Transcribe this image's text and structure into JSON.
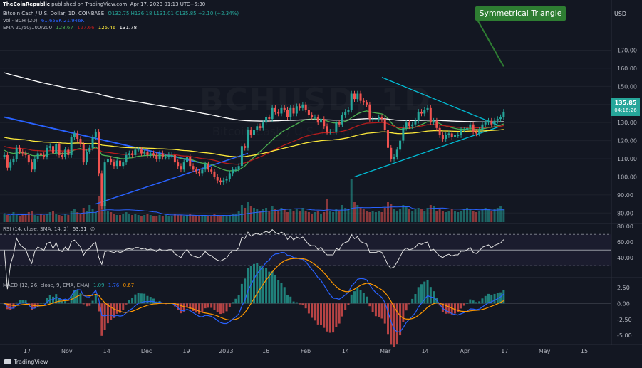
{
  "publisher": {
    "name": "TheCoinRepublic",
    "text": "published on TradingView.com, Apr 17, 2023 01:13 UTC+5:30"
  },
  "symbol": {
    "title": "Bitcoin Cash / U.S. Dollar, 1D, COINBASE",
    "ohlc": "O132.75 H136.18 L131.01 C135.85 +3.10 (+2.34%)",
    "vol": "Vol · BCH (20)",
    "vol_values": "61.659K  21.946K",
    "ema": "EMA 20/50/100/200",
    "ema_values": [
      "128.67",
      "127.66",
      "125.46",
      "131.78"
    ]
  },
  "watermark": {
    "main": "BCHUSD, 1D",
    "sub": "Bitcoin Cash / U.S. Dollar"
  },
  "annotation": "Symmetrical Triangle",
  "currency": "USD",
  "last_price": {
    "price": "135.85",
    "countdown": "04:16:26"
  },
  "rsi": {
    "label": "RSI (14, close, SMA, 14, 2)",
    "value": "63.51",
    "extra": "∅"
  },
  "macd": {
    "label": "MACD (12, 26, close, 9, EMA, EMA)",
    "values": [
      "1.09",
      "1.76",
      "0.67"
    ]
  },
  "footer": "TradingView",
  "colors": {
    "up": "#26a69a",
    "down": "#ef5350",
    "ema20": "#4caf50",
    "ema50": "#b71c1c",
    "ema100": "#ffeb3b",
    "ema200": "#ffffff",
    "vol_ma": "#2962ff",
    "trend": "#2962ff",
    "triangle": "#00bcd4",
    "annot": "#2e7d32"
  },
  "chart_data": {
    "type": "line",
    "x_ticks": [
      "17",
      "Nov",
      "14",
      "Dec",
      "19",
      "2023",
      "16",
      "Feb",
      "14",
      "Mar",
      "14",
      "Apr",
      "17",
      "May",
      "15"
    ],
    "price": {
      "ticks": [
        80,
        90,
        100,
        110,
        120,
        130,
        140,
        150,
        160,
        170
      ],
      "ylim": [
        75,
        182
      ],
      "close": [
        112,
        105,
        108,
        110,
        116,
        114,
        113,
        112,
        108,
        104,
        110,
        113,
        112,
        111,
        116,
        117,
        113,
        118,
        112,
        111,
        115,
        112,
        122,
        124,
        121,
        118,
        108,
        114,
        116,
        122,
        125,
        102,
        84,
        108,
        110,
        108,
        106,
        109,
        106,
        108,
        112,
        113,
        112,
        115,
        115,
        113,
        114,
        112,
        113,
        112,
        110,
        113,
        111,
        111,
        112,
        112,
        108,
        106,
        104,
        108,
        111,
        106,
        104,
        103,
        102,
        104,
        107,
        104,
        103,
        100,
        98,
        97,
        98,
        99,
        102,
        104,
        104,
        106,
        117,
        116,
        126,
        123,
        126,
        128,
        127,
        130,
        133,
        132,
        138,
        136,
        135,
        138,
        137,
        133,
        138,
        135,
        139,
        138,
        140,
        137,
        134,
        133,
        133,
        130,
        132,
        128,
        125,
        125,
        125,
        130,
        129,
        134,
        136,
        137,
        146,
        143,
        146,
        142,
        141,
        140,
        132,
        132,
        132,
        133,
        132,
        126,
        116,
        110,
        111,
        115,
        120,
        127,
        130,
        128,
        129,
        131,
        136,
        135,
        137,
        138,
        130,
        131,
        127,
        123,
        121,
        123,
        124,
        122,
        123,
        123,
        126,
        126,
        127,
        129,
        125,
        124,
        126,
        129,
        130,
        131,
        129,
        131,
        132,
        133,
        136
      ]
    },
    "volume": [
      6,
      5,
      4,
      7,
      5,
      4,
      6,
      5,
      7,
      8,
      5,
      4,
      6,
      5,
      6,
      7,
      8,
      6,
      5,
      4,
      6,
      5,
      8,
      9,
      7,
      6,
      10,
      8,
      12,
      9,
      7,
      18,
      15,
      14,
      8,
      7,
      6,
      5,
      5,
      6,
      7,
      6,
      5,
      6,
      5,
      4,
      5,
      6,
      5,
      4,
      4,
      5,
      4,
      5,
      4,
      4,
      6,
      5,
      5,
      4,
      5,
      6,
      5,
      4,
      4,
      5,
      5,
      4,
      4,
      6,
      5,
      4,
      5,
      4,
      5,
      6,
      6,
      8,
      12,
      10,
      14,
      11,
      10,
      9,
      8,
      9,
      10,
      8,
      11,
      9,
      8,
      10,
      9,
      7,
      9,
      8,
      9,
      8,
      10,
      8,
      7,
      6,
      7,
      8,
      6,
      7,
      16,
      8,
      7,
      9,
      8,
      12,
      10,
      9,
      30,
      14,
      12,
      10,
      9,
      8,
      7,
      8,
      7,
      8,
      7,
      10,
      14,
      13,
      9,
      8,
      9,
      12,
      11,
      9,
      8,
      9,
      10,
      9,
      8,
      10,
      12,
      11,
      8,
      9,
      8,
      7,
      8,
      9,
      8,
      7,
      8,
      9,
      10,
      9,
      8,
      7,
      8,
      9,
      10,
      9,
      8,
      9,
      10,
      11,
      9
    ],
    "rsi": {
      "value": 63.51,
      "ticks": [
        40,
        60,
        80
      ],
      "upper": 70,
      "lower": 30,
      "ylim": [
        22,
        82
      ]
    },
    "macd": {
      "macd": 1.09,
      "signal": 1.76,
      "hist": 0.67,
      "ticks": [
        2.5,
        0.0,
        -2.5,
        -5.0
      ],
      "ylim": [
        -6.2,
        3.6
      ]
    }
  }
}
